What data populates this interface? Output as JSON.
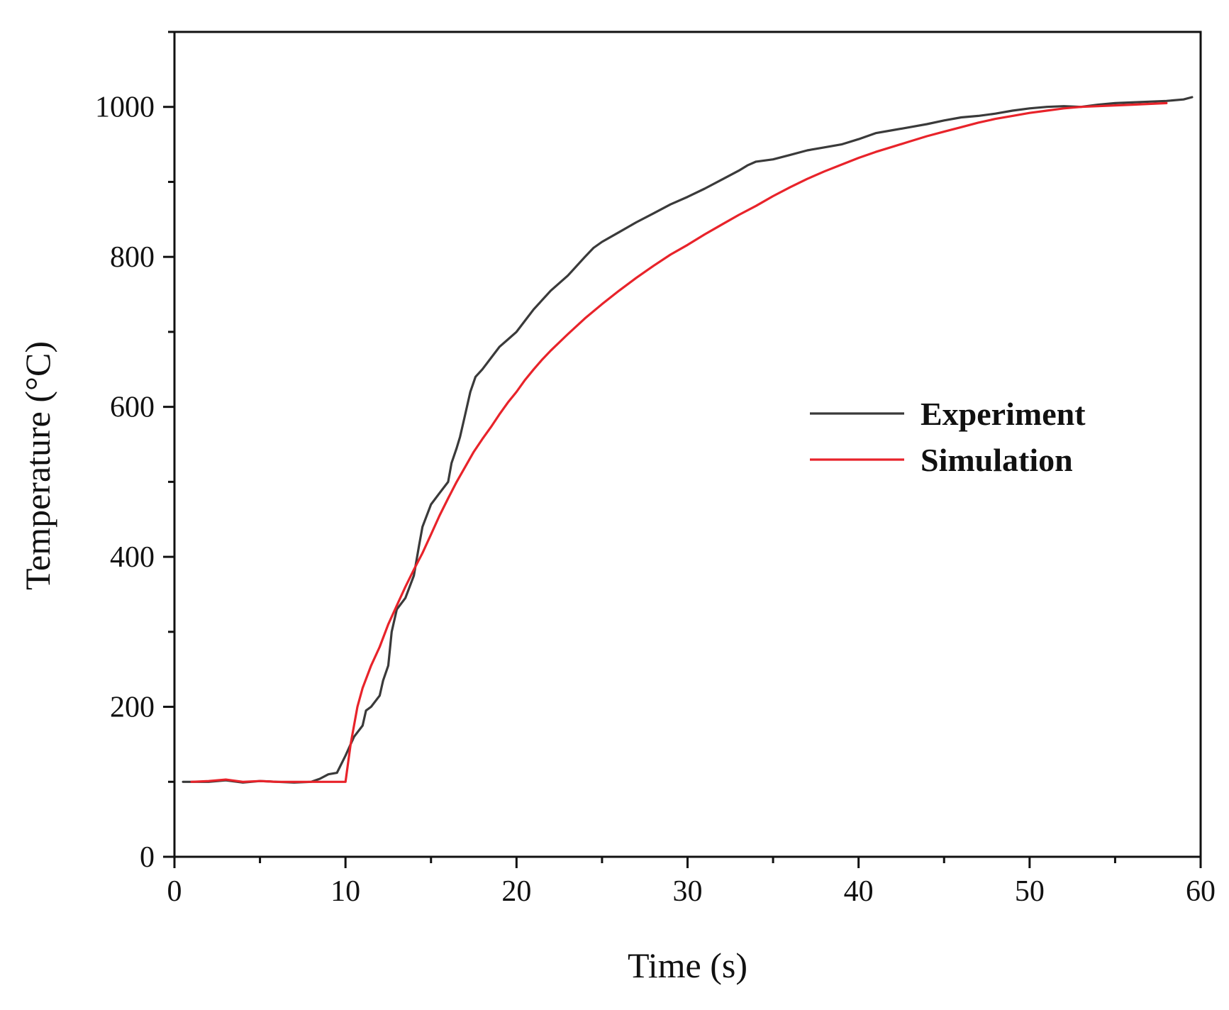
{
  "chart_data": {
    "type": "line",
    "title": "",
    "xlabel": "Time (s)",
    "ylabel": "Temperature (°C)",
    "xlim": [
      0,
      60
    ],
    "ylim": [
      0,
      1100
    ],
    "x_ticks": [
      0,
      10,
      20,
      30,
      40,
      50,
      60
    ],
    "y_ticks": [
      0,
      200,
      400,
      600,
      800,
      1000
    ],
    "grid": false,
    "legend_position": "right-middle",
    "colors": {
      "Experiment": "#3a3a3a",
      "Simulation": "#e8232a"
    },
    "series": [
      {
        "name": "Experiment",
        "points": [
          [
            0.5,
            100
          ],
          [
            1,
            100
          ],
          [
            2,
            100
          ],
          [
            3,
            102
          ],
          [
            4,
            99
          ],
          [
            5,
            101
          ],
          [
            6,
            100
          ],
          [
            7,
            99
          ],
          [
            8,
            100
          ],
          [
            8.5,
            104
          ],
          [
            9,
            110
          ],
          [
            9.5,
            112
          ],
          [
            10,
            135
          ],
          [
            10.5,
            160
          ],
          [
            11,
            175
          ],
          [
            11.2,
            195
          ],
          [
            11.5,
            200
          ],
          [
            12,
            215
          ],
          [
            12.2,
            235
          ],
          [
            12.5,
            255
          ],
          [
            12.7,
            300
          ],
          [
            13,
            330
          ],
          [
            13.5,
            345
          ],
          [
            14,
            375
          ],
          [
            14.3,
            415
          ],
          [
            14.5,
            440
          ],
          [
            15,
            470
          ],
          [
            15.5,
            485
          ],
          [
            16,
            500
          ],
          [
            16.2,
            525
          ],
          [
            16.5,
            545
          ],
          [
            16.7,
            560
          ],
          [
            17,
            590
          ],
          [
            17.3,
            620
          ],
          [
            17.6,
            640
          ],
          [
            18,
            650
          ],
          [
            18.5,
            665
          ],
          [
            19,
            680
          ],
          [
            19.5,
            690
          ],
          [
            20,
            700
          ],
          [
            20.5,
            715
          ],
          [
            21,
            730
          ],
          [
            22,
            755
          ],
          [
            23,
            775
          ],
          [
            24,
            800
          ],
          [
            24.5,
            812
          ],
          [
            25,
            820
          ],
          [
            26,
            833
          ],
          [
            27,
            846
          ],
          [
            28,
            858
          ],
          [
            29,
            870
          ],
          [
            30,
            880
          ],
          [
            31,
            891
          ],
          [
            32,
            903
          ],
          [
            33,
            915
          ],
          [
            33.5,
            922
          ],
          [
            34,
            927
          ],
          [
            35,
            930
          ],
          [
            36,
            936
          ],
          [
            37,
            942
          ],
          [
            38,
            946
          ],
          [
            39,
            950
          ],
          [
            40,
            957
          ],
          [
            41,
            965
          ],
          [
            42,
            969
          ],
          [
            43,
            973
          ],
          [
            44,
            977
          ],
          [
            45,
            982
          ],
          [
            46,
            986
          ],
          [
            47,
            988
          ],
          [
            48,
            991
          ],
          [
            49,
            995
          ],
          [
            50,
            998
          ],
          [
            51,
            1000
          ],
          [
            52,
            1001
          ],
          [
            53,
            1000
          ],
          [
            54,
            1003
          ],
          [
            55,
            1005
          ],
          [
            56,
            1006
          ],
          [
            57,
            1007
          ],
          [
            58,
            1008
          ],
          [
            59,
            1010
          ],
          [
            59.5,
            1013
          ]
        ]
      },
      {
        "name": "Simulation",
        "points": [
          [
            1,
            100
          ],
          [
            2,
            101
          ],
          [
            3,
            103
          ],
          [
            4,
            100
          ],
          [
            5,
            101
          ],
          [
            6,
            100
          ],
          [
            7,
            100
          ],
          [
            8,
            100
          ],
          [
            9,
            100
          ],
          [
            10,
            100
          ],
          [
            10.3,
            150
          ],
          [
            10.7,
            200
          ],
          [
            11,
            225
          ],
          [
            11.5,
            255
          ],
          [
            12,
            280
          ],
          [
            12.5,
            310
          ],
          [
            13,
            335
          ],
          [
            13.5,
            360
          ],
          [
            14,
            383
          ],
          [
            14.5,
            405
          ],
          [
            15,
            430
          ],
          [
            15.5,
            455
          ],
          [
            16,
            478
          ],
          [
            16.5,
            500
          ],
          [
            17,
            520
          ],
          [
            17.5,
            540
          ],
          [
            18,
            557
          ],
          [
            18.5,
            573
          ],
          [
            19,
            590
          ],
          [
            19.5,
            606
          ],
          [
            20,
            620
          ],
          [
            20.5,
            636
          ],
          [
            21,
            650
          ],
          [
            21.5,
            663
          ],
          [
            22,
            675
          ],
          [
            23,
            697
          ],
          [
            24,
            718
          ],
          [
            25,
            737
          ],
          [
            26,
            755
          ],
          [
            27,
            772
          ],
          [
            28,
            788
          ],
          [
            29,
            803
          ],
          [
            30,
            816
          ],
          [
            31,
            830
          ],
          [
            32,
            843
          ],
          [
            33,
            856
          ],
          [
            34,
            868
          ],
          [
            35,
            881
          ],
          [
            36,
            893
          ],
          [
            37,
            904
          ],
          [
            38,
            914
          ],
          [
            39,
            923
          ],
          [
            40,
            932
          ],
          [
            41,
            940
          ],
          [
            42,
            947
          ],
          [
            43,
            954
          ],
          [
            44,
            961
          ],
          [
            45,
            967
          ],
          [
            46,
            973
          ],
          [
            47,
            979
          ],
          [
            48,
            984
          ],
          [
            49,
            988
          ],
          [
            50,
            992
          ],
          [
            51,
            995
          ],
          [
            52,
            998
          ],
          [
            53,
            1000
          ],
          [
            54,
            1001
          ],
          [
            55,
            1002
          ],
          [
            56,
            1003
          ],
          [
            57,
            1004
          ],
          [
            58,
            1005
          ]
        ]
      }
    ]
  }
}
